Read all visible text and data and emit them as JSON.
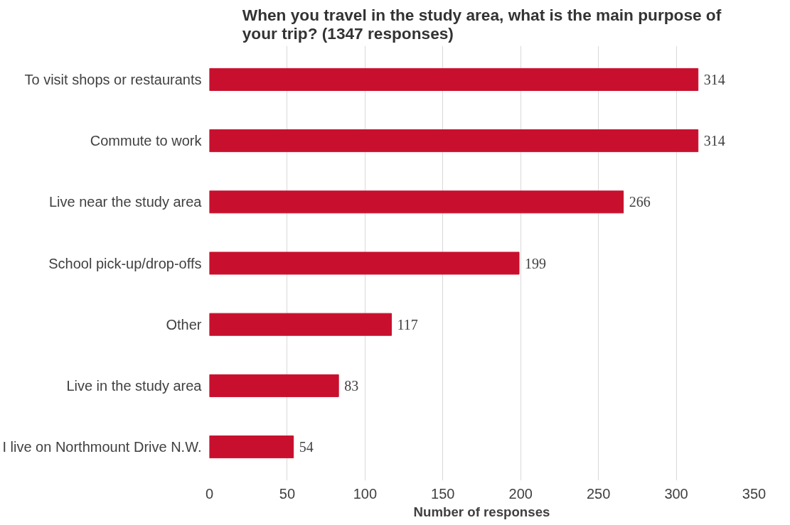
{
  "chart_data": {
    "type": "bar",
    "orientation": "horizontal",
    "title": "When you travel in the study area, what is the main purpose of your trip? (1347 responses)",
    "xlabel": "Number of responses",
    "categories": [
      "To visit shops or restaurants",
      "Commute to work",
      "Live near the study area",
      "School pick-up/drop-offs",
      "Other",
      "Live in the study area",
      "I live on Northmount Drive N.W."
    ],
    "values": [
      314,
      314,
      266,
      199,
      117,
      83,
      54
    ],
    "color": "#c8102e",
    "xlim": [
      0,
      350
    ],
    "xticks": [
      0,
      50,
      100,
      150,
      200,
      250,
      300,
      350
    ],
    "grid": "x",
    "data_labels": true
  }
}
